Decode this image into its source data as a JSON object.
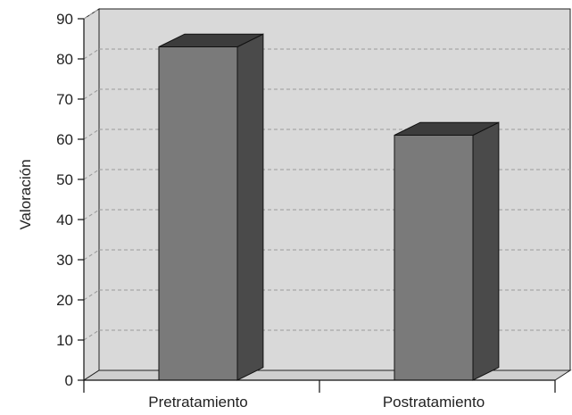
{
  "chart_data": {
    "type": "bar",
    "categories": [
      "Pretratamiento",
      "Postratamiento"
    ],
    "values": [
      83,
      61
    ],
    "title": "",
    "xlabel": "",
    "ylabel": "Valoración",
    "ylim": [
      0,
      90
    ],
    "yticks": [
      0,
      10,
      20,
      30,
      40,
      50,
      60,
      70,
      80,
      90
    ],
    "grid": true,
    "style": "3d-column",
    "colors": {
      "wall": "#d9d9d9",
      "floor": "#cfcfcf",
      "bar_front": "#7a7a7a",
      "bar_side": "#4a4a4a",
      "bar_top": "#3c3c3c",
      "grid": "#9a9a9a"
    }
  }
}
